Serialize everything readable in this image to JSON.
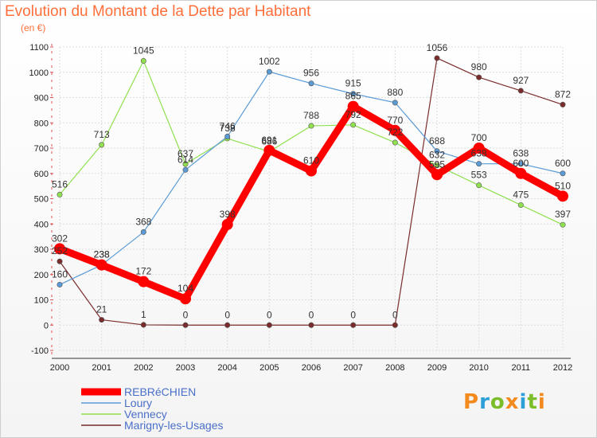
{
  "title": "Evolution du Montant de la Dette par Habitant",
  "subtitle": "(en €)",
  "logo_text": "Proxiti",
  "logo_colors": [
    "#f28a1e",
    "#2d9fd8",
    "#7cbd2a",
    "#f28a1e",
    "#2d9fd8",
    "#7cbd2a",
    "#f28a1e"
  ],
  "chart_data": {
    "type": "line",
    "x": [
      "2000",
      "2001",
      "2002",
      "2003",
      "2004",
      "2005",
      "2006",
      "2007",
      "2008",
      "2009",
      "2010",
      "2011",
      "2012"
    ],
    "ylim": [
      -100,
      1100
    ],
    "yticks": [
      "-100",
      "0",
      "100",
      "200",
      "300",
      "400",
      "500",
      "600",
      "700",
      "800",
      "900",
      "1000",
      "1100"
    ],
    "grid": true,
    "legend_position": "bottom-left",
    "series": [
      {
        "name": "REBRéCHIEN",
        "color": "#ff0000",
        "values": [
          302,
          238,
          172,
          104,
          398,
          691,
          610,
          865,
          770,
          595,
          700,
          600,
          510
        ],
        "labels": [
          "302",
          "238",
          "172",
          "104",
          "398",
          "691",
          "610",
          "865",
          "770",
          "595",
          "700",
          "600",
          "510"
        ]
      },
      {
        "name": "Loury",
        "color": "#5b9bd5",
        "values": [
          160,
          238,
          368,
          614,
          746,
          1002,
          956,
          915,
          880,
          688,
          638,
          638,
          600
        ],
        "labels": [
          "160",
          "238",
          "368",
          "614",
          "746",
          "1002",
          "956",
          "915",
          "880",
          "688",
          "638",
          "638",
          "600"
        ]
      },
      {
        "name": "Vennecy",
        "color": "#90e050",
        "values": [
          516,
          713,
          1045,
          637,
          738,
          686,
          788,
          792,
          722,
          632,
          553,
          475,
          397
        ],
        "labels": [
          "516",
          "713",
          "1045",
          "637",
          "738",
          "686",
          "788",
          "792",
          "722",
          "632",
          "553",
          "475",
          "397"
        ]
      },
      {
        "name": "Marigny-les-Usages",
        "color": "#7a2c2c",
        "values": [
          252,
          21,
          1,
          0,
          0,
          0,
          0,
          0,
          0,
          1056,
          980,
          927,
          872
        ],
        "labels": [
          "252",
          "21",
          "1",
          "0",
          "0",
          "0",
          "0",
          "0",
          "0",
          "1056",
          "980",
          "927",
          "872"
        ]
      }
    ]
  }
}
